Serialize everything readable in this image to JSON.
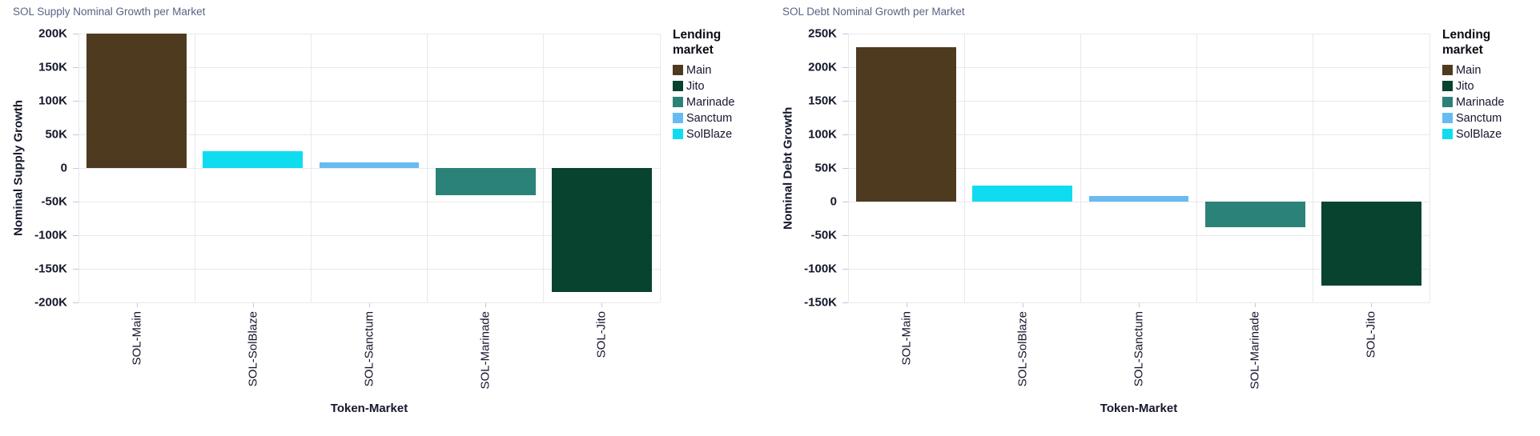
{
  "chart_data": [
    {
      "type": "bar",
      "title": "SOL Supply Nominal Growth per Market",
      "xlabel": "Token-Market",
      "ylabel": "Nominal Supply Growth",
      "categories": [
        "SOL-Main",
        "SOL-SolBlaze",
        "SOL-Sanctum",
        "SOL-Marinade",
        "SOL-Jito"
      ],
      "values": [
        200000,
        25000,
        8000,
        -40000,
        -185000
      ],
      "bar_markets": [
        "Main",
        "SolBlaze",
        "Sanctum",
        "Marinade",
        "Jito"
      ],
      "bar_colors": [
        "#4e3a1f",
        "#10dcf0",
        "#68bbf2",
        "#2b8278",
        "#07432e"
      ],
      "ylim": [
        -200000,
        200000
      ],
      "ytick_values": [
        200000,
        150000,
        100000,
        50000,
        0,
        -50000,
        -100000,
        -150000,
        -200000
      ],
      "ytick_labels": [
        "200K",
        "150K",
        "100K",
        "50K",
        "0",
        "-50K",
        "-100K",
        "-150K",
        "-200K"
      ],
      "grid": true,
      "legend_position": "right"
    },
    {
      "type": "bar",
      "title": "SOL Debt Nominal Growth per Market",
      "xlabel": "Token-Market",
      "ylabel": "Nominal Debt Growth",
      "categories": [
        "SOL-Main",
        "SOL-SolBlaze",
        "SOL-Sanctum",
        "SOL-Marinade",
        "SOL-Jito"
      ],
      "values": [
        230000,
        24000,
        8000,
        -38000,
        -125000
      ],
      "bar_markets": [
        "Main",
        "SolBlaze",
        "Sanctum",
        "Marinade",
        "Jito"
      ],
      "bar_colors": [
        "#4e3a1f",
        "#10dcf0",
        "#68bbf2",
        "#2b8278",
        "#07432e"
      ],
      "ylim": [
        -150000,
        250000
      ],
      "ytick_values": [
        250000,
        200000,
        150000,
        100000,
        50000,
        0,
        -50000,
        -100000,
        -150000
      ],
      "ytick_labels": [
        "250K",
        "200K",
        "150K",
        "100K",
        "50K",
        "0",
        "-50K",
        "-100K",
        "-150K"
      ],
      "grid": true,
      "legend_position": "right"
    }
  ],
  "legend": {
    "title": "Lending market",
    "items": [
      {
        "label": "Main",
        "color": "#4e3a1f"
      },
      {
        "label": "Jito",
        "color": "#07432e"
      },
      {
        "label": "Marinade",
        "color": "#2b8278"
      },
      {
        "label": "Sanctum",
        "color": "#68bbf2"
      },
      {
        "label": "SolBlaze",
        "color": "#10dcf0"
      }
    ]
  },
  "colors": {
    "title_text": "#5b6383",
    "axis_text": "#15172c",
    "gridline": "#e8e8ee",
    "tick_mark": "#c8c8d2",
    "background": "#ffffff"
  }
}
